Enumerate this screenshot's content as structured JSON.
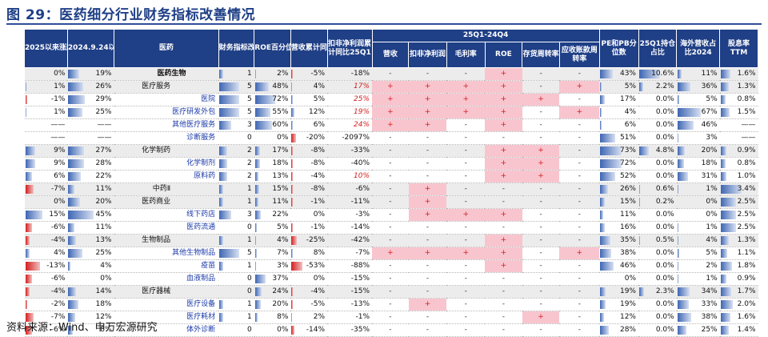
{
  "title": "图 29：医药细分行业财务指标改善情况",
  "source": "资料来源：Wind、申万宏源研究",
  "header": {
    "ret2025": "2025以来涨跌幅",
    "ret2024": "2024.9.24以来涨跌幅",
    "industry": "医药",
    "improve": "财务指标改善数量",
    "roe_pct": "ROE百分位25Q1",
    "rev_yoy": "营收累计同比25Q1",
    "np_label": "扣非净利润累计同比25Q1",
    "period": "25Q1-24Q4",
    "rev": "营收",
    "np": "扣非净利润",
    "gm": "毛利率",
    "roe": "ROE",
    "inv": "存货周转率",
    "ar": "应收账款周转率",
    "pepb": "PE和PB分位数",
    "fund": "25Q1持仓占比",
    "overseas": "海外营收占比2024",
    "div": "股息率TTM"
  },
  "chart_data": {
    "type": "table",
    "columns": [
      "2025以来涨跌幅",
      "2024.9.24以来涨跌幅",
      "医药",
      "财务指标改善数量",
      "ROE百分位25Q1",
      "营收累计同比25Q1",
      "扣非净利润累计同比25Q1",
      "营收",
      "扣非净利润",
      "毛利率",
      "ROE",
      "存货周转率",
      "应收账款周转率",
      "PE和PB分位数",
      "25Q1持仓占比",
      "海外营收占比2024",
      "股息率TTM"
    ],
    "rows": [
      {
        "r25": "0%",
        "r24": "19%",
        "name": "医药生物",
        "lvl": 1,
        "imp": "1",
        "roe": "2%",
        "rev": "-5%",
        "np": "-18%",
        "sig": [
          "-",
          "-",
          "-",
          "+",
          "-",
          "-"
        ],
        "pepb": "43%",
        "fund": "10.6%",
        "os": "11%",
        "div": "1.6%"
      },
      {
        "r25": "1%",
        "r24": "26%",
        "name": "医疗服务",
        "lvl": 2,
        "imp": "5",
        "roe": "48%",
        "rev": "4%",
        "np": "17%",
        "sig": [
          "+",
          "+",
          "+",
          "+",
          "-",
          "+"
        ],
        "pepb": "5%",
        "fund": "2.2%",
        "os": "36%",
        "div": "1.3%"
      },
      {
        "r25": "-1%",
        "r24": "29%",
        "name": "医院",
        "lvl": 3,
        "imp": "5",
        "roe": "72%",
        "rev": "5%",
        "np": "25%",
        "sig": [
          "+",
          "+",
          "+",
          "+",
          "+",
          "-"
        ],
        "pepb": "17%",
        "fund": "0.0%",
        "os": "5%",
        "div": "0.8%"
      },
      {
        "r25": "1%",
        "r24": "25%",
        "name": "医疗研发外包",
        "lvl": 3,
        "imp": "5",
        "roe": "55%",
        "rev": "12%",
        "np": "19%",
        "sig": [
          "+",
          "+",
          "+",
          "+",
          "-",
          "+"
        ],
        "pepb": "4%",
        "fund": "0.0%",
        "os": "67%",
        "div": "1.5%"
      },
      {
        "r25": "——",
        "r24": "——",
        "name": "其他医疗服务",
        "lvl": 3,
        "imp": "3",
        "roe": "60%",
        "rev": "6%",
        "np": "24%",
        "sig": [
          "+",
          "+",
          "-",
          "+",
          "-",
          "-"
        ],
        "pepb": "6%",
        "fund": "0.0%",
        "os": "46%",
        "div": "——"
      },
      {
        "r25": "——",
        "r24": "——",
        "name": "诊断服务",
        "lvl": 3,
        "imp": "0",
        "roe": "0%",
        "rev": "-20%",
        "np": "-2097%",
        "sig": [
          "-",
          "-",
          "-",
          "-",
          "-",
          "-"
        ],
        "pepb": "51%",
        "fund": "0.0%",
        "os": "3%",
        "div": "——"
      },
      {
        "r25": "9%",
        "r24": "27%",
        "name": "化学制药",
        "lvl": 2,
        "imp": "2",
        "roe": "17%",
        "rev": "-8%",
        "np": "-33%",
        "sig": [
          "-",
          "-",
          "-",
          "+",
          "+",
          "-"
        ],
        "pepb": "73%",
        "fund": "4.8%",
        "os": "20%",
        "div": "0.9%"
      },
      {
        "r25": "9%",
        "r24": "28%",
        "name": "化学制剂",
        "lvl": 3,
        "imp": "2",
        "roe": "18%",
        "rev": "-8%",
        "np": "-40%",
        "sig": [
          "-",
          "-",
          "-",
          "+",
          "+",
          "-"
        ],
        "pepb": "72%",
        "fund": "0.0%",
        "os": "18%",
        "div": "0.8%"
      },
      {
        "r25": "6%",
        "r24": "22%",
        "name": "原料药",
        "lvl": 3,
        "imp": "2",
        "roe": "13%",
        "rev": "-4%",
        "np": "10%",
        "sig": [
          "-",
          "-",
          "-",
          "+",
          "+",
          "-"
        ],
        "pepb": "52%",
        "fund": "0.0%",
        "os": "31%",
        "div": "1.0%"
      },
      {
        "r25": "-7%",
        "r24": "11%",
        "name": "中药Ⅱ",
        "lvl": 2,
        "imp": "1",
        "roe": "15%",
        "rev": "-8%",
        "np": "-6%",
        "sig": [
          "-",
          "+",
          "-",
          "-",
          "-",
          "-"
        ],
        "pepb": "26%",
        "fund": "0.6%",
        "os": "1%",
        "div": "3.4%"
      },
      {
        "r25": "0%",
        "r24": "20%",
        "name": "医药商业",
        "lvl": 2,
        "imp": "1",
        "roe": "11%",
        "rev": "-1%",
        "np": "-11%",
        "sig": [
          "-",
          "+",
          "-",
          "-",
          "-",
          "-"
        ],
        "pepb": "15%",
        "fund": "0.2%",
        "os": "0%",
        "div": "2.5%"
      },
      {
        "r25": "15%",
        "r24": "45%",
        "name": "线下药店",
        "lvl": 3,
        "imp": "3",
        "roe": "22%",
        "rev": "0%",
        "np": "-3%",
        "sig": [
          "-",
          "+",
          "+",
          "+",
          "-",
          "-"
        ],
        "pepb": "11%",
        "fund": "0.0%",
        "os": "0%",
        "div": "2.5%"
      },
      {
        "r25": "-6%",
        "r24": "11%",
        "name": "医药流通",
        "lvl": 3,
        "imp": "0",
        "roe": "5%",
        "rev": "-1%",
        "np": "-14%",
        "sig": [
          "-",
          "-",
          "-",
          "-",
          "-",
          "-"
        ],
        "pepb": "16%",
        "fund": "0.0%",
        "os": "1%",
        "div": "2.5%"
      },
      {
        "r25": "-4%",
        "r24": "13%",
        "name": "生物制品",
        "lvl": 2,
        "imp": "1",
        "roe": "4%",
        "rev": "-25%",
        "np": "-42%",
        "sig": [
          "-",
          "-",
          "-",
          "+",
          "-",
          "-"
        ],
        "pepb": "35%",
        "fund": "0.5%",
        "os": "4%",
        "div": "1.3%"
      },
      {
        "r25": "4%",
        "r24": "25%",
        "name": "其他生物制品",
        "lvl": 3,
        "imp": "5",
        "roe": "7%",
        "rev": "8%",
        "np": "-7%",
        "sig": [
          "+",
          "+",
          "+",
          "+",
          "-",
          "+"
        ],
        "pepb": "38%",
        "fund": "0.0%",
        "os": "5%",
        "div": "1.1%"
      },
      {
        "r25": "-13%",
        "r24": "4%",
        "name": "疫苗",
        "lvl": 3,
        "imp": "1",
        "roe": "3%",
        "rev": "-53%",
        "np": "-88%",
        "sig": [
          "-",
          "-",
          "-",
          "+",
          "-",
          "-"
        ],
        "pepb": "46%",
        "fund": "0.0%",
        "os": "2%",
        "div": "1.8%"
      },
      {
        "r25": "-6%",
        "r24": "0%",
        "name": "血液制品",
        "lvl": 3,
        "imp": "0",
        "roe": "37%",
        "rev": "0%",
        "np": "-15%",
        "sig": [
          "-",
          "-",
          "-",
          "-",
          "-",
          "-"
        ],
        "pepb": "0%",
        "fund": "0.0%",
        "os": "1%",
        "div": "0.9%"
      },
      {
        "r25": "-4%",
        "r24": "14%",
        "name": "医疗器械",
        "lvl": 2,
        "imp": "0",
        "roe": "24%",
        "rev": "-4%",
        "np": "-15%",
        "sig": [
          "-",
          "-",
          "-",
          "-",
          "-",
          "-"
        ],
        "pepb": "19%",
        "fund": "2.3%",
        "os": "34%",
        "div": "1.7%"
      },
      {
        "r25": "-2%",
        "r24": "18%",
        "name": "医疗设备",
        "lvl": 3,
        "imp": "1",
        "roe": "20%",
        "rev": "-5%",
        "np": "-13%",
        "sig": [
          "-",
          "+",
          "-",
          "-",
          "-",
          "-"
        ],
        "pepb": "19%",
        "fund": "0.0%",
        "os": "33%",
        "div": "2.0%"
      },
      {
        "r25": "-7%",
        "r24": "12%",
        "name": "医疗耗材",
        "lvl": 3,
        "imp": "1",
        "roe": "8%",
        "rev": "2%",
        "np": "-1%",
        "sig": [
          "-",
          "-",
          "-",
          "-",
          "+",
          "-"
        ],
        "pepb": "12%",
        "fund": "0.0%",
        "os": "38%",
        "div": "1.6%"
      },
      {
        "r25": "-6%",
        "r24": "8%",
        "name": "体外诊断",
        "lvl": 3,
        "imp": "0",
        "roe": "0%",
        "rev": "-14%",
        "np": "-35%",
        "sig": [
          "-",
          "-",
          "-",
          "-",
          "-",
          "-"
        ],
        "pepb": "28%",
        "fund": "0.0%",
        "os": "25%",
        "div": "1.4%"
      }
    ]
  }
}
